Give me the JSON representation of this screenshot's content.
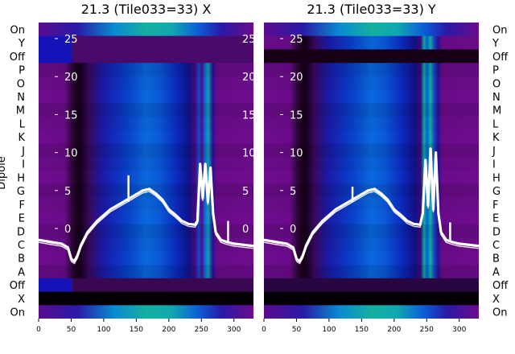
{
  "ylabel": "Dipole",
  "row_labels": [
    "On",
    "Y",
    "Off",
    "P",
    "O",
    "N",
    "M",
    "L",
    "K",
    "J",
    "I",
    "H",
    "G",
    "F",
    "E",
    "D",
    "C",
    "B",
    "A",
    "Off",
    "X",
    "On"
  ],
  "x_ticks": [
    0,
    50,
    100,
    150,
    200,
    250,
    300
  ],
  "y_overlay_ticks": [
    0,
    5,
    10,
    15,
    20,
    25
  ],
  "colors": {
    "background": "#6e0d8e",
    "dark_band": "#1b001f",
    "bright_band": "#0c50d0",
    "peak": "#14a79a",
    "line": "#ffffff"
  },
  "chart_data": [
    {
      "type": "heatmap",
      "title": "21.3 (Tile033=33) X",
      "x_range": [
        0,
        330
      ],
      "y_overlay_range": [
        -2.5,
        27
      ],
      "line_series": {
        "x": [
          0,
          20,
          35,
          45,
          50,
          55,
          60,
          65,
          75,
          90,
          110,
          130,
          150,
          160,
          170,
          180,
          190,
          200,
          210,
          220,
          230,
          240,
          244,
          248,
          252,
          256,
          260,
          264,
          268,
          272,
          280,
          290,
          300,
          320,
          330
        ],
        "y": [
          -1.5,
          -1.8,
          -2.0,
          -2.5,
          -4.0,
          -4.3,
          -3.5,
          -2.2,
          -0.5,
          1.0,
          2.5,
          3.5,
          4.5,
          5.0,
          5.2,
          4.6,
          3.8,
          2.5,
          1.8,
          1.0,
          0.6,
          0.5,
          1.0,
          8.5,
          4.0,
          8.5,
          3.5,
          8.0,
          2.0,
          -0.5,
          -1.5,
          -1.8,
          -2.0,
          -2.2,
          -2.3
        ]
      },
      "spikes": [
        {
          "x": 138,
          "y": 7.0
        },
        {
          "x": 291,
          "y": 1.0
        }
      ]
    },
    {
      "type": "heatmap",
      "title": "21.3 (Tile033=33) Y",
      "x_range": [
        0,
        330
      ],
      "y_overlay_range": [
        -2.5,
        27
      ],
      "line_series": {
        "x": [
          0,
          20,
          35,
          45,
          50,
          55,
          60,
          65,
          75,
          90,
          110,
          130,
          150,
          160,
          170,
          180,
          190,
          200,
          210,
          220,
          230,
          240,
          244,
          248,
          252,
          256,
          260,
          264,
          268,
          272,
          280,
          290,
          300,
          320,
          330
        ],
        "y": [
          -1.5,
          -1.8,
          -2.0,
          -2.5,
          -4.0,
          -4.3,
          -3.5,
          -2.2,
          -0.5,
          1.0,
          2.5,
          3.5,
          4.5,
          5.0,
          5.2,
          4.6,
          3.8,
          2.5,
          1.8,
          1.0,
          0.6,
          0.5,
          2.0,
          9.0,
          3.0,
          10.5,
          2.5,
          10.0,
          2.0,
          -0.5,
          -1.5,
          -1.8,
          -2.0,
          -2.2,
          -2.3
        ]
      },
      "spikes": [
        {
          "x": 136,
          "y": 5.5
        },
        {
          "x": 286,
          "y": 0.8
        }
      ]
    }
  ]
}
